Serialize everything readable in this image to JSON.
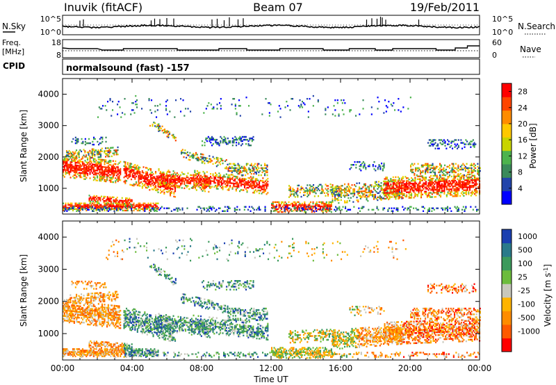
{
  "header": {
    "station": "Inuvik (fitACF)",
    "beam": "Beam 07",
    "date": "19/Feb/2011"
  },
  "top_panels": {
    "nsky_label": "N.Sky",
    "nsearch_label": "N.Search",
    "nsky_ticks": [
      "10^5",
      "10^0"
    ],
    "nsearch_ticks": [
      "10^5",
      "10^0"
    ],
    "freq_label_line1": "Freq.",
    "freq_label_line2": "[MHz]",
    "freq_ticks": [
      "18",
      "8"
    ],
    "nave_label": "Nave",
    "nave_ticks": [
      "60",
      "0"
    ],
    "cpid_label": "CPID",
    "cpid_text": "normalsound (fast) -157"
  },
  "colors": {
    "power_scale": [
      "#0000ff",
      "#2244aa",
      "#3a8a5a",
      "#4db34d",
      "#c8d400",
      "#ffc800",
      "#ff8c00",
      "#ff4500",
      "#ff0000"
    ],
    "velocity_scale": [
      "#1a3fb0",
      "#2a7a8a",
      "#3c9a5c",
      "#6cbc3c",
      "#c8c8bc",
      "#ffb400",
      "#ff8c00",
      "#ff5a00",
      "#ff0000"
    ]
  },
  "chart_data": [
    {
      "type": "heatmap",
      "name": "power",
      "xlabel": "Time UT",
      "ylabel": "Slant Range [km]",
      "xlim": [
        0,
        24
      ],
      "ylim": [
        180,
        4500
      ],
      "x_ticks": [
        "00:00",
        "04:00",
        "08:00",
        "12:00",
        "16:00",
        "20:00",
        "00:00"
      ],
      "y_ticks": [
        "1000",
        "2000",
        "3000",
        "4000"
      ],
      "colorbar_label": "Power [dB]",
      "colorbar_ticks": [
        "4",
        "8",
        "12",
        "16",
        "20",
        "24",
        "28"
      ],
      "colorbar_range": [
        0,
        30
      ]
    },
    {
      "type": "heatmap",
      "name": "velocity",
      "xlabel": "Time UT",
      "ylabel": "Slant Range [km]",
      "xlim": [
        0,
        24
      ],
      "ylim": [
        180,
        4500
      ],
      "x_ticks": [
        "00:00",
        "04:00",
        "08:00",
        "12:00",
        "16:00",
        "20:00",
        "00:00"
      ],
      "y_ticks": [
        "1000",
        "2000",
        "3000",
        "4000"
      ],
      "colorbar_label": "Velocity [m s",
      "colorbar_label_sup": "-1",
      "colorbar_label_end": "]",
      "colorbar_ticks": [
        "1000",
        "500",
        "100",
        "25",
        "-25",
        "-100",
        "-500",
        "-1000"
      ]
    }
  ]
}
